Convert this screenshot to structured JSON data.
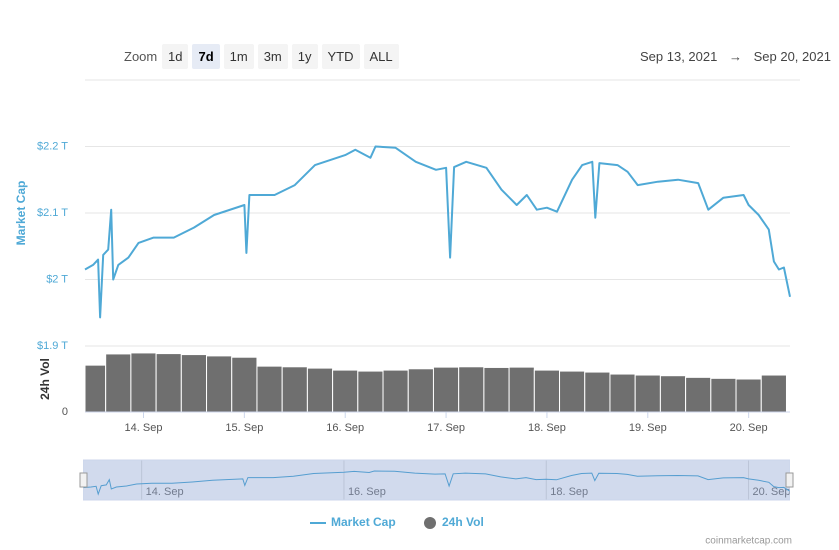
{
  "toolbar": {
    "zoom_label": "Zoom",
    "buttons": [
      "1d",
      "7d",
      "1m",
      "3m",
      "1y",
      "YTD",
      "ALL"
    ],
    "selected": "7d",
    "date_from": "Sep 13, 2021",
    "arrow": "→",
    "date_to": "Sep 20, 2021"
  },
  "chart_data": [
    {
      "type": "line",
      "y_label": "Market Cap",
      "x": [
        13.42,
        13.5,
        13.55,
        13.57,
        13.6,
        13.65,
        13.68,
        13.7,
        13.75,
        13.85,
        13.95,
        14.1,
        14.3,
        14.5,
        14.7,
        15.0,
        15.02,
        15.05,
        15.3,
        15.5,
        15.7,
        16.0,
        16.1,
        16.25,
        16.3,
        16.5,
        16.7,
        16.9,
        17.0,
        17.04,
        17.08,
        17.2,
        17.4,
        17.55,
        17.7,
        17.8,
        17.9,
        18.0,
        18.1,
        18.25,
        18.35,
        18.45,
        18.48,
        18.52,
        18.7,
        18.8,
        18.9,
        19.1,
        19.3,
        19.5,
        19.6,
        19.75,
        19.95,
        20.0,
        20.1,
        20.2,
        20.25,
        20.3,
        20.35,
        20.41
      ],
      "series": [
        {
          "name": "Market Cap",
          "color": "#4fa9d6",
          "values": [
            2.015,
            2.022,
            2.03,
            1.943,
            2.037,
            2.045,
            2.105,
            2.0,
            2.022,
            2.033,
            2.055,
            2.063,
            2.063,
            2.078,
            2.097,
            2.112,
            2.04,
            2.127,
            2.127,
            2.142,
            2.172,
            2.187,
            2.195,
            2.183,
            2.2,
            2.198,
            2.177,
            2.165,
            2.168,
            2.033,
            2.169,
            2.177,
            2.168,
            2.135,
            2.112,
            2.127,
            2.105,
            2.108,
            2.102,
            2.15,
            2.172,
            2.177,
            2.093,
            2.175,
            2.172,
            2.162,
            2.142,
            2.147,
            2.15,
            2.145,
            2.105,
            2.123,
            2.127,
            2.112,
            2.097,
            2.075,
            2.027,
            2.015,
            2.018,
            1.974
          ]
        }
      ],
      "xlim": [
        13.42,
        20.41
      ],
      "xticks": [
        {
          "value": 14,
          "label": "14. Sep"
        },
        {
          "value": 15,
          "label": "15. Sep"
        },
        {
          "value": 16,
          "label": "16. Sep"
        },
        {
          "value": 17,
          "label": "17. Sep"
        },
        {
          "value": 18,
          "label": "18. Sep"
        },
        {
          "value": 19,
          "label": "19. Sep"
        },
        {
          "value": 20,
          "label": "20. Sep"
        }
      ],
      "ylim": [
        1.9,
        2.3
      ],
      "yticks": [
        {
          "value": 1.9,
          "label": "$1.9 T"
        },
        {
          "value": 2,
          "label": "$2 T"
        },
        {
          "value": 2.1,
          "label": "$2.1 T"
        },
        {
          "value": 2.2,
          "label": "$2.2 T"
        }
      ],
      "grid": true
    },
    {
      "type": "bar",
      "y_label": "24h Vol",
      "x": [
        13.5,
        13.75,
        14.0,
        14.25,
        14.5,
        14.75,
        15.0,
        15.25,
        15.5,
        15.75,
        16.0,
        16.25,
        16.5,
        16.75,
        17.0,
        17.25,
        17.5,
        17.75,
        18.0,
        18.25,
        18.5,
        18.75,
        19.0,
        19.25,
        19.5,
        19.75,
        20.0,
        20.25
      ],
      "series": [
        {
          "name": "24h Vol",
          "color": "#6f6f6f",
          "values": [
            142,
            176,
            179,
            177,
            174,
            170,
            166,
            139,
            137,
            133,
            127,
            124,
            127,
            131,
            136,
            137,
            135,
            136,
            127,
            124,
            121,
            115,
            112,
            110,
            105,
            102,
            100,
            112
          ]
        }
      ],
      "xlim": [
        13.42,
        20.41
      ],
      "ylim": [
        0,
        200
      ],
      "yticks": [
        0
      ]
    }
  ],
  "credit": "coinmarketcap.com"
}
